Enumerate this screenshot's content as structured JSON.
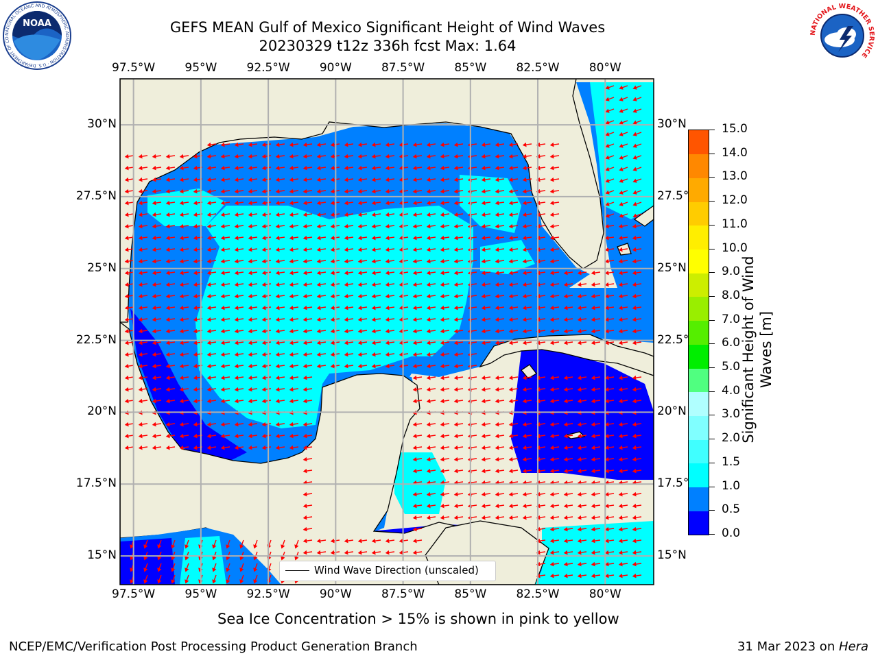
{
  "header": {
    "title": "GEFS MEAN Gulf of Mexico Significant Height of Wind Waves",
    "subtitle": "20230329 t12z 336h fcst   Max: 1.64"
  },
  "logos": {
    "noaa": {
      "text": "NOAA",
      "ring_text": "NATIONAL OCEANIC AND ATMOSPHERIC ADMINISTRATION · U.S. DEPARTMENT OF COMMERCE"
    },
    "nws": {
      "ring_text": "NATIONAL WEATHER SERVICE"
    }
  },
  "map": {
    "lon_ticks": [
      "97.5°W",
      "95°W",
      "92.5°W",
      "90°W",
      "87.5°W",
      "85°W",
      "82.5°W",
      "80°W"
    ],
    "lat_ticks_left": [
      "30°N",
      "27.5°N",
      "25°N",
      "22.5°N",
      "20°N",
      "17.5°N",
      "15°N"
    ],
    "lat_ticks_right": [
      "30°N",
      "27.5°N",
      "25°N",
      "22.5°N",
      "20°N",
      "17.5°N",
      "15°N"
    ],
    "lon_range": [
      -98,
      -78.2
    ],
    "lat_range": [
      14,
      31.6
    ],
    "legend": "Wind Wave Direction (unscaled)",
    "colors": {
      "land": "#efeedb",
      "arrow": "#ff0000",
      "grid": "#b0b0b0"
    }
  },
  "colorbar": {
    "label": "Significant Height of Wind Waves [m]",
    "label_line1": "Significant Height of Wind",
    "label_line2": "Waves [m]",
    "ticks": [
      "0.0",
      "0.5",
      "1.0",
      "1.5",
      "2.0",
      "3.0",
      "4.0",
      "5.0",
      "6.0",
      "7.0",
      "8.0",
      "9.0",
      "10.0",
      "11.0",
      "12.0",
      "13.0",
      "14.0",
      "15.0"
    ],
    "colors": [
      "#0000ff",
      "#0080ff",
      "#00ffff",
      "#40ffff",
      "#80ffff",
      "#b0ffff",
      "#50ff80",
      "#00ee00",
      "#55ee00",
      "#99ee00",
      "#ccee00",
      "#ffff00",
      "#ffee00",
      "#ffcc00",
      "#ffaa00",
      "#ff8800",
      "#ff5500",
      "#ff2200",
      "#ff0000"
    ]
  },
  "note": "Sea Ice Concentration > 15% is shown in pink to yellow",
  "footer": {
    "left": "NCEP/EMC/Verification Post Processing Product Generation Branch",
    "date": "31 Mar 2023 on ",
    "machine": "Hera"
  }
}
